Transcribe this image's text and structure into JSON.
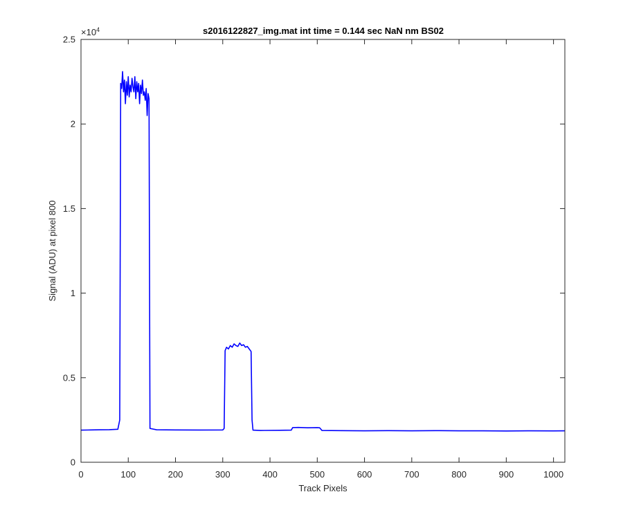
{
  "chart_data": {
    "type": "line",
    "title": "s2016122827_img.mat int time = 0.144 sec  NaN nm BS02",
    "xlabel": "Track Pixels",
    "ylabel": "Signal (ADU) at pixel 800",
    "xlim": [
      0,
      1024
    ],
    "ylim": [
      0,
      25000
    ],
    "x_ticks": [
      0,
      100,
      200,
      300,
      400,
      500,
      600,
      700,
      800,
      900,
      1000
    ],
    "x_tick_labels": [
      "0",
      "100",
      "200",
      "300",
      "400",
      "500",
      "600",
      "700",
      "800",
      "900",
      "1000"
    ],
    "y_ticks": [
      0,
      5000,
      10000,
      15000,
      20000,
      25000
    ],
    "y_tick_labels": [
      "0",
      "0.5",
      "1",
      "1.5",
      "2",
      "2.5"
    ],
    "y_exponent_base": "×10",
    "y_exponent_power": "4",
    "grid": false,
    "line_color": "#0000ff",
    "series": [
      {
        "x": [
          0,
          20,
          40,
          60,
          78,
          82,
          84,
          86,
          88,
          90,
          92,
          94,
          96,
          98,
          100,
          102,
          104,
          106,
          108,
          110,
          112,
          114,
          116,
          118,
          120,
          122,
          124,
          126,
          128,
          130,
          132,
          134,
          136,
          138,
          140,
          142,
          144,
          146,
          160,
          200,
          250,
          300,
          303,
          305,
          308,
          312,
          316,
          320,
          324,
          328,
          332,
          336,
          340,
          344,
          348,
          352,
          356,
          360,
          362,
          364,
          380,
          420,
          445,
          448,
          460,
          480,
          500,
          505,
          510,
          550,
          600,
          650,
          700,
          750,
          800,
          850,
          900,
          950,
          1000,
          1024
        ],
        "y": [
          1900,
          1910,
          1920,
          1925,
          1950,
          2500,
          22400,
          22100,
          23100,
          21900,
          22600,
          21200,
          22500,
          21700,
          22800,
          21600,
          22300,
          21900,
          22700,
          22200,
          21900,
          22800,
          21500,
          22500,
          21900,
          22400,
          21200,
          22300,
          21800,
          22600,
          21700,
          21900,
          21400,
          22100,
          20500,
          21800,
          21500,
          2000,
          1920,
          1910,
          1905,
          1910,
          2000,
          6600,
          6800,
          6700,
          6900,
          6800,
          7000,
          6900,
          6850,
          7050,
          6900,
          6950,
          6800,
          6850,
          6700,
          6550,
          2500,
          1900,
          1880,
          1890,
          1900,
          2050,
          2060,
          2040,
          2050,
          2040,
          1880,
          1870,
          1860,
          1870,
          1860,
          1870,
          1860,
          1860,
          1850,
          1860,
          1855,
          1860
        ]
      }
    ]
  }
}
